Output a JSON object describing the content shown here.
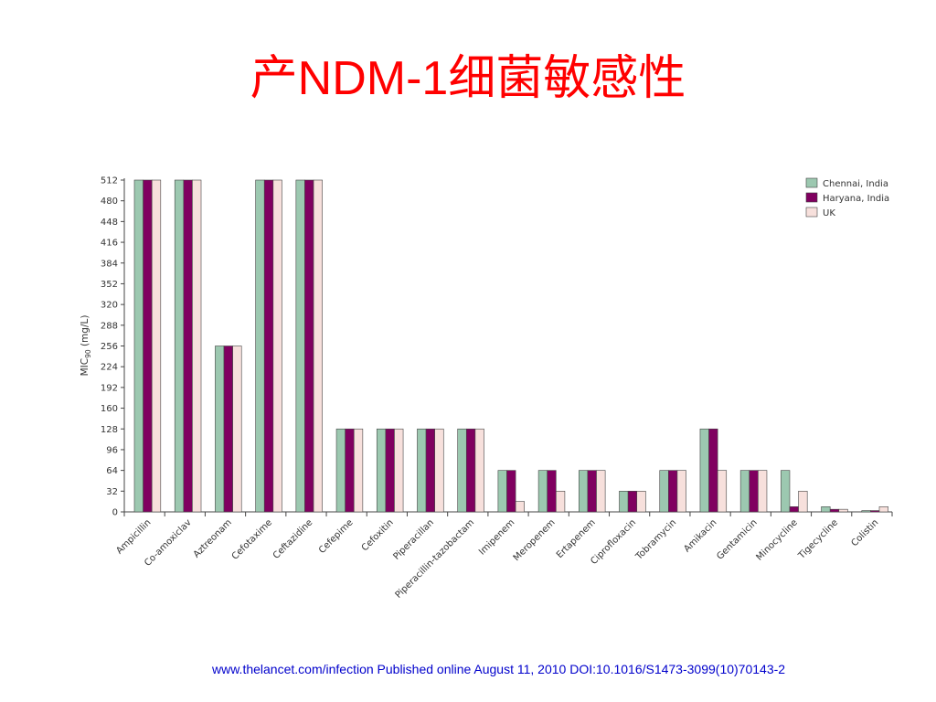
{
  "slide": {
    "title": "产NDM-1细菌敏感性",
    "source": "www.thelancet.com/infection Published online August 11, 2010 DOI:10.1016/S1473-3099(10)70143-2"
  },
  "colors": {
    "series": [
      "#9cc8b0",
      "#800060",
      "#f7e0dc"
    ],
    "bar_stroke": "#444444",
    "axis": "#444444"
  },
  "chart_data": {
    "type": "bar",
    "ylabel_main": "MIC",
    "ylabel_sub": "90",
    "ylabel_unit": " (mg/L)",
    "ylim": [
      0,
      512
    ],
    "yticks": [
      0,
      32,
      64,
      96,
      128,
      160,
      192,
      224,
      256,
      288,
      320,
      352,
      384,
      416,
      448,
      480,
      512
    ],
    "legend_position": "top-right",
    "categories": [
      "Ampicillin",
      "Co-amoxiclav",
      "Aztreonam",
      "Cefotaxime",
      "Ceftazidine",
      "Cefepime",
      "Cefoxitin",
      "Piperacillan",
      "Piperacillin-tazobactam",
      "Imipenem",
      "Meropenem",
      "Ertapenem",
      "Ciprofloxacin",
      "Tobramycin",
      "Amikacin",
      "Gentamicin",
      "Minocycline",
      "Tigecycline",
      "Colistin"
    ],
    "series": [
      {
        "name": "Chennai, India",
        "values": [
          512,
          512,
          256,
          512,
          512,
          128,
          128,
          128,
          128,
          64,
          64,
          64,
          32,
          64,
          128,
          64,
          64,
          8,
          2
        ]
      },
      {
        "name": "Haryana, India",
        "values": [
          512,
          512,
          256,
          512,
          512,
          128,
          128,
          128,
          128,
          64,
          64,
          64,
          32,
          64,
          128,
          64,
          8,
          4,
          2
        ]
      },
      {
        "name": "UK",
        "values": [
          512,
          512,
          256,
          512,
          512,
          128,
          128,
          128,
          128,
          16,
          32,
          64,
          32,
          64,
          64,
          64,
          32,
          4,
          8
        ]
      }
    ]
  }
}
